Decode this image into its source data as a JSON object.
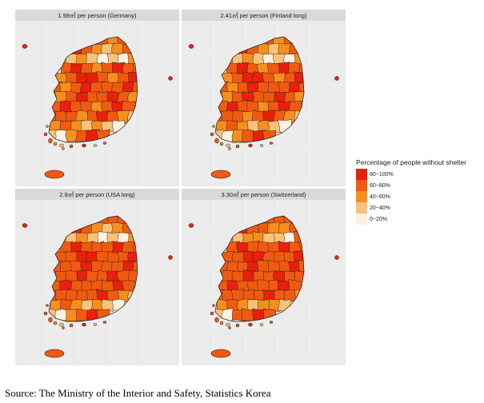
{
  "panels": [
    {
      "title": "1.98㎡ per person (Germany)",
      "levels": [
        3,
        2,
        3,
        4,
        3,
        2,
        1,
        2,
        3,
        2,
        1,
        2,
        1,
        0,
        1,
        0,
        2,
        3,
        4,
        3,
        2,
        3,
        4,
        3,
        3,
        2,
        3,
        4,
        4,
        3,
        2,
        3,
        4,
        3,
        2,
        3,
        4,
        3,
        3,
        3,
        4,
        3,
        2,
        3,
        4,
        3,
        3,
        4,
        3,
        2,
        3,
        4,
        3,
        3,
        2,
        3,
        4,
        3,
        3,
        3
      ]
    },
    {
      "title": "2.41㎡ per person (Finland long)",
      "levels": [
        3,
        2,
        3,
        4,
        3,
        2,
        1,
        2,
        3,
        2,
        1,
        2,
        1,
        0,
        1,
        0,
        2,
        3,
        4,
        3,
        2,
        3,
        4,
        3,
        3,
        2,
        3,
        4,
        4,
        3,
        2,
        3,
        4,
        3,
        2,
        3,
        4,
        3,
        3,
        3,
        4,
        3,
        2,
        3,
        4,
        3,
        3,
        4,
        3,
        2,
        3,
        4,
        3,
        3,
        2,
        3,
        4,
        3,
        3,
        3
      ]
    },
    {
      "title": "2.8㎡ per person (USA long)",
      "levels": [
        3,
        3,
        3,
        4,
        3,
        2,
        1,
        2,
        3,
        2,
        1,
        2,
        1,
        0,
        1,
        0,
        2,
        3,
        4,
        3,
        3,
        3,
        4,
        3,
        3,
        3,
        3,
        4,
        4,
        3,
        3,
        3,
        4,
        3,
        3,
        3,
        4,
        3,
        3,
        3,
        4,
        3,
        3,
        3,
        4,
        3,
        3,
        4,
        3,
        3,
        3,
        4,
        3,
        3,
        3,
        3,
        4,
        3,
        3,
        3
      ]
    },
    {
      "title": "3.30㎡ per person (Switzerland)",
      "levels": [
        3,
        3,
        3,
        4,
        3,
        3,
        2,
        2,
        3,
        2,
        1,
        2,
        2,
        1,
        1,
        0,
        3,
        3,
        4,
        3,
        3,
        3,
        4,
        3,
        3,
        3,
        3,
        4,
        4,
        3,
        3,
        3,
        4,
        3,
        3,
        3,
        4,
        3,
        3,
        3,
        4,
        3,
        3,
        3,
        4,
        3,
        3,
        4,
        3,
        3,
        3,
        4,
        3,
        3,
        3,
        3,
        4,
        3,
        3,
        3
      ]
    }
  ],
  "legend": {
    "title": "Percentage of people without shelter",
    "items": [
      {
        "label": "80~100%",
        "color": "#e8200d"
      },
      {
        "label": "60~80%",
        "color": "#f05a10"
      },
      {
        "label": "40~60%",
        "color": "#f58f1e"
      },
      {
        "label": "20~40%",
        "color": "#f9c27a"
      },
      {
        "label": "0~20%",
        "color": "#fdf2e2"
      }
    ]
  },
  "source": "Source: The Ministry of the Interior and Safety, Statistics Korea"
}
